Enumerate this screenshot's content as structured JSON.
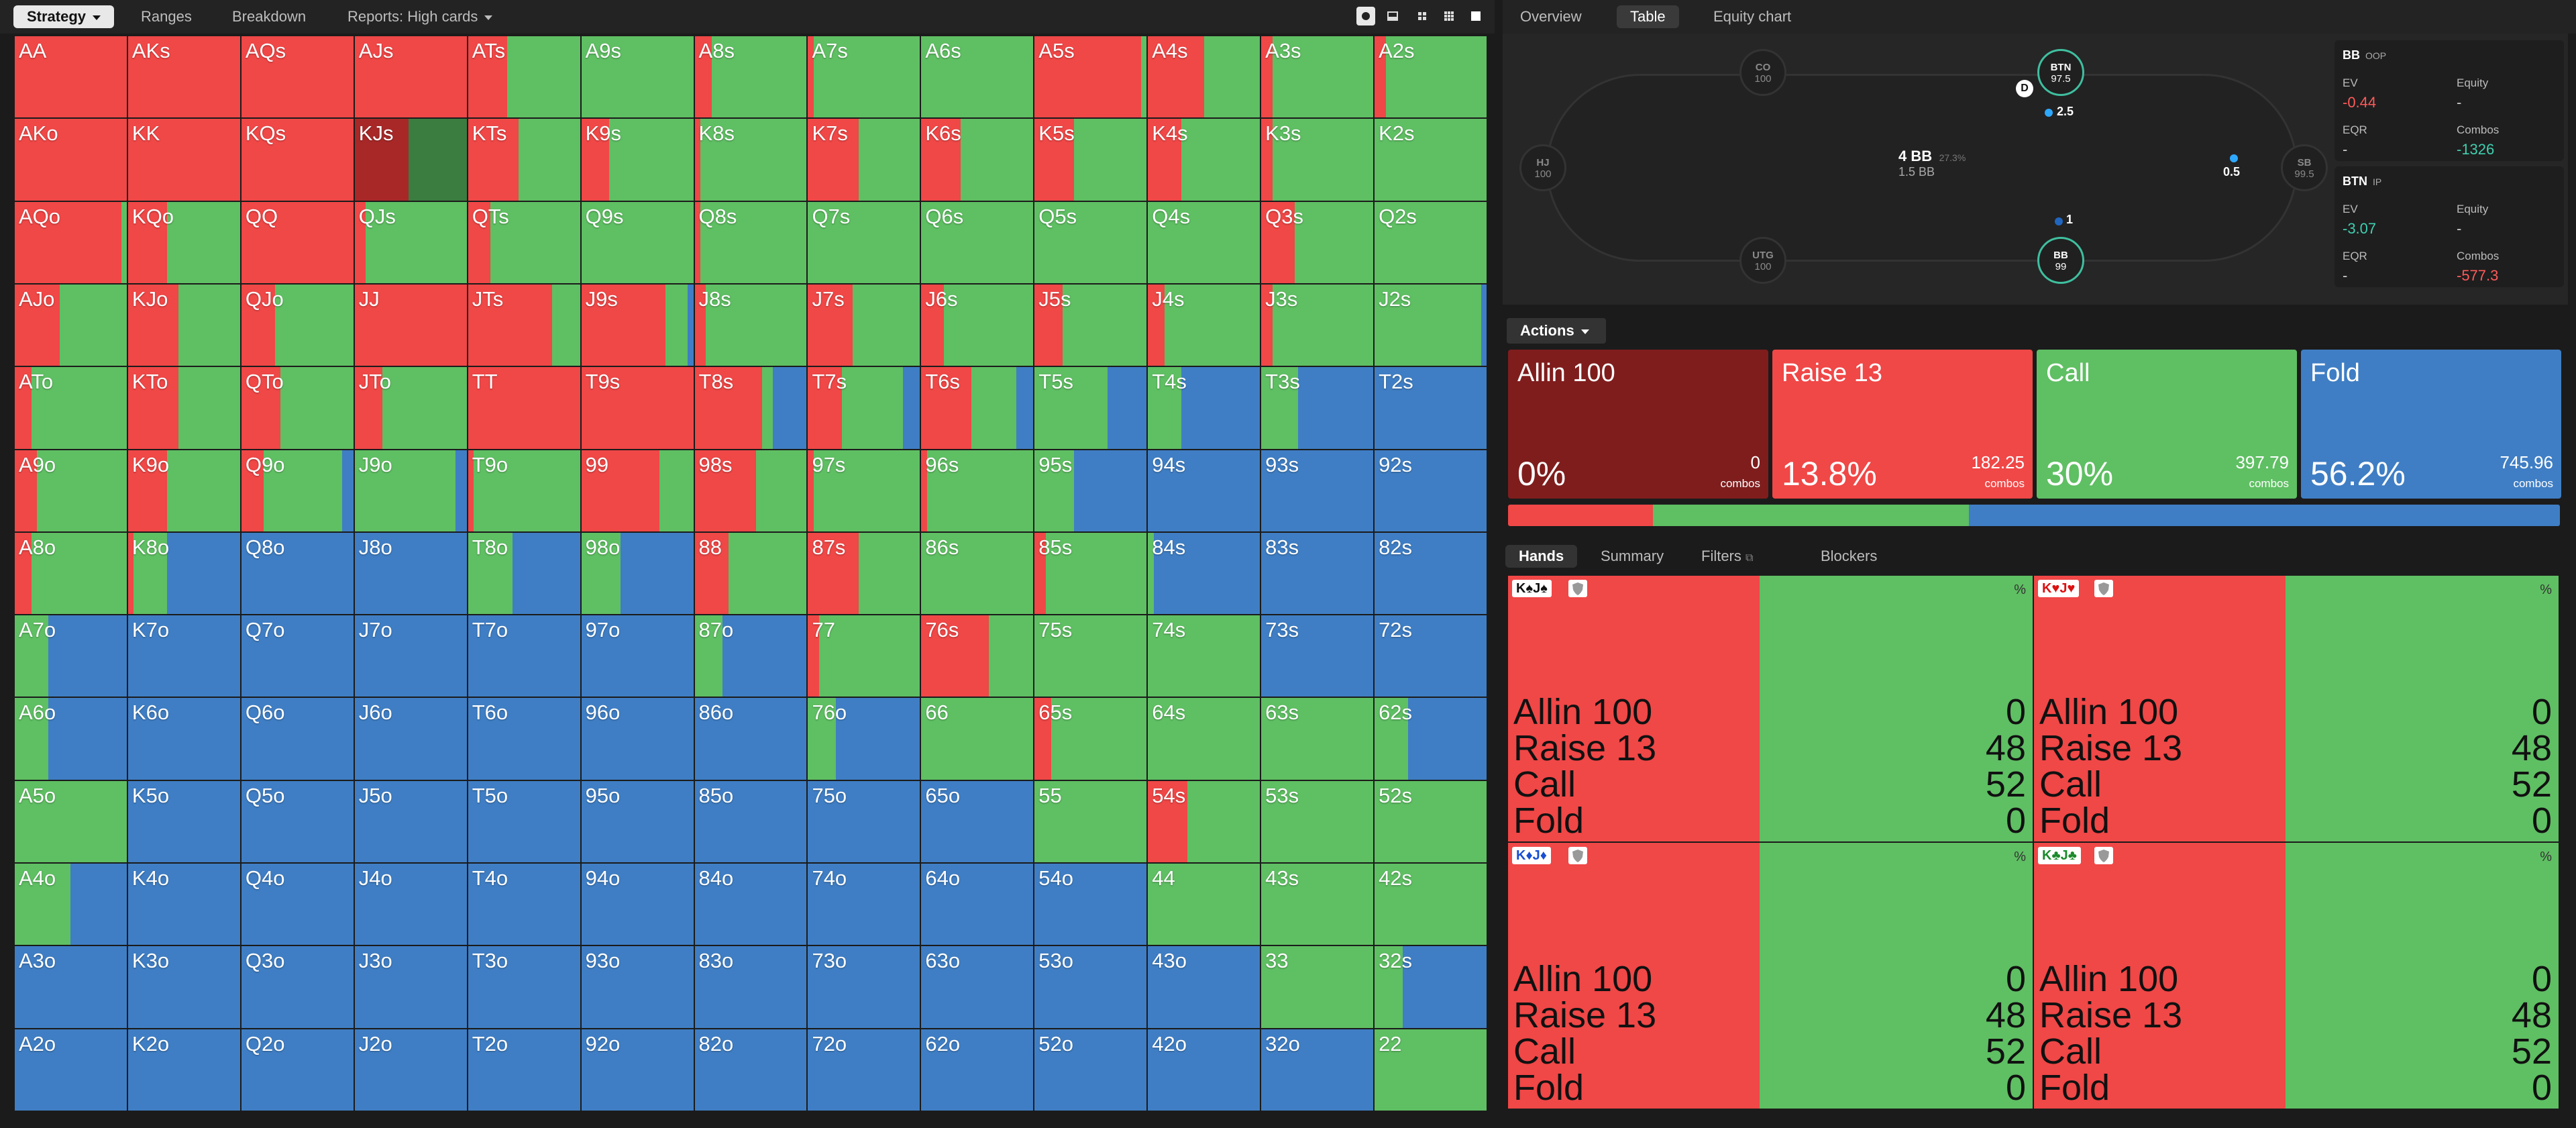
{
  "toolbar": {
    "tabs": [
      "Strategy",
      "Ranges",
      "Breakdown",
      "Reports: High cards"
    ],
    "active_tab": "Strategy",
    "view_icons": [
      "cards-icon",
      "split-view-icon",
      "compact-grid-icon",
      "grid-icon",
      "square-icon"
    ]
  },
  "right_tabs": {
    "items": [
      "Overview",
      "Table",
      "Equity chart"
    ],
    "active": "Table"
  },
  "colors": {
    "allin": "#7f1d1d",
    "raise": "#f04747",
    "call": "#5fbf63",
    "fold": "#3f7ec4",
    "highlight_raise": "#a82828",
    "highlight_call": "#3b7d40"
  },
  "grid": {
    "ranks": [
      "A",
      "K",
      "Q",
      "J",
      "T",
      "9",
      "8",
      "7",
      "6",
      "5",
      "4",
      "3",
      "2"
    ],
    "labels": [
      [
        "AA",
        "AKs",
        "AQs",
        "AJs",
        "ATs",
        "A9s",
        "A8s",
        "A7s",
        "A6s",
        "A5s",
        "A4s",
        "A3s",
        "A2s"
      ],
      [
        "AKo",
        "KK",
        "KQs",
        "KJs",
        "KTs",
        "K9s",
        "K8s",
        "K7s",
        "K6s",
        "K5s",
        "K4s",
        "K3s",
        "K2s"
      ],
      [
        "AQo",
        "KQo",
        "QQ",
        "QJs",
        "QTs",
        "Q9s",
        "Q8s",
        "Q7s",
        "Q6s",
        "Q5s",
        "Q4s",
        "Q3s",
        "Q2s"
      ],
      [
        "AJo",
        "KJo",
        "QJo",
        "JJ",
        "JTs",
        "J9s",
        "J8s",
        "J7s",
        "J6s",
        "J5s",
        "J4s",
        "J3s",
        "J2s"
      ],
      [
        "ATo",
        "KTo",
        "QTo",
        "JTo",
        "TT",
        "T9s",
        "T8s",
        "T7s",
        "T6s",
        "T5s",
        "T4s",
        "T3s",
        "T2s"
      ],
      [
        "A9o",
        "K9o",
        "Q9o",
        "J9o",
        "T9o",
        "99",
        "98s",
        "97s",
        "96s",
        "95s",
        "94s",
        "93s",
        "92s"
      ],
      [
        "A8o",
        "K8o",
        "Q8o",
        "J8o",
        "T8o",
        "98o",
        "88",
        "87s",
        "86s",
        "85s",
        "84s",
        "83s",
        "82s"
      ],
      [
        "A7o",
        "K7o",
        "Q7o",
        "J7o",
        "T7o",
        "97o",
        "87o",
        "77",
        "76s",
        "75s",
        "74s",
        "73s",
        "72s"
      ],
      [
        "A6o",
        "K6o",
        "Q6o",
        "J6o",
        "T6o",
        "96o",
        "86o",
        "76o",
        "66",
        "65s",
        "64s",
        "63s",
        "62s"
      ],
      [
        "A5o",
        "K5o",
        "Q5o",
        "J5o",
        "T5o",
        "95o",
        "85o",
        "75o",
        "65o",
        "55",
        "54s",
        "53s",
        "52s"
      ],
      [
        "A4o",
        "K4o",
        "Q4o",
        "J4o",
        "T4o",
        "94o",
        "84o",
        "74o",
        "64o",
        "54o",
        "44",
        "43s",
        "42s"
      ],
      [
        "A3o",
        "K3o",
        "Q3o",
        "J3o",
        "T3o",
        "93o",
        "83o",
        "73o",
        "63o",
        "53o",
        "43o",
        "33",
        "32s"
      ],
      [
        "A2o",
        "K2o",
        "Q2o",
        "J2o",
        "T2o",
        "92o",
        "82o",
        "72o",
        "62o",
        "52o",
        "42o",
        "32o",
        "22"
      ]
    ],
    "frequencies": [
      [
        [
          0,
          1,
          0,
          0
        ],
        [
          0,
          1,
          0,
          0
        ],
        [
          0,
          1,
          0,
          0
        ],
        [
          0,
          1,
          0,
          0
        ],
        [
          0,
          0.35,
          0.65,
          0
        ],
        [
          0,
          0,
          1,
          0
        ],
        [
          0,
          0.15,
          0.85,
          0
        ],
        [
          0,
          0.05,
          0.95,
          0
        ],
        [
          0,
          0,
          1,
          0
        ],
        [
          0,
          0.95,
          0.05,
          0
        ],
        [
          0,
          0.5,
          0.5,
          0
        ],
        [
          0,
          0.1,
          0.9,
          0
        ],
        [
          0,
          0.1,
          0.9,
          0
        ]
      ],
      [
        [
          0,
          1,
          0,
          0
        ],
        [
          0,
          1,
          0,
          0
        ],
        [
          0,
          1,
          0,
          0
        ],
        [
          0,
          0.48,
          0.52,
          0
        ],
        [
          0,
          0.45,
          0.55,
          0
        ],
        [
          0,
          0.25,
          0.75,
          0
        ],
        [
          0,
          0.05,
          0.95,
          0
        ],
        [
          0,
          0.45,
          0.55,
          0
        ],
        [
          0,
          0.35,
          0.65,
          0
        ],
        [
          0,
          0.35,
          0.65,
          0
        ],
        [
          0,
          0.3,
          0.7,
          0
        ],
        [
          0,
          0.1,
          0.9,
          0
        ],
        [
          0,
          0,
          1,
          0
        ]
      ],
      [
        [
          0,
          0.95,
          0.05,
          0
        ],
        [
          0,
          0.35,
          0.65,
          0
        ],
        [
          0,
          1,
          0,
          0
        ],
        [
          0,
          0.1,
          0.9,
          0
        ],
        [
          0,
          0.2,
          0.8,
          0
        ],
        [
          0,
          0,
          1,
          0
        ],
        [
          0,
          0.05,
          0.95,
          0
        ],
        [
          0,
          0,
          1,
          0
        ],
        [
          0,
          0,
          1,
          0
        ],
        [
          0,
          0,
          1,
          0
        ],
        [
          0,
          0,
          1,
          0
        ],
        [
          0,
          0.3,
          0.7,
          0
        ],
        [
          0,
          0,
          1,
          0
        ]
      ],
      [
        [
          0,
          0.4,
          0.6,
          0
        ],
        [
          0,
          0.45,
          0.55,
          0
        ],
        [
          0,
          0.3,
          0.7,
          0
        ],
        [
          0,
          1,
          0,
          0
        ],
        [
          0,
          0.75,
          0.25,
          0
        ],
        [
          0,
          0.75,
          0.2,
          0.05
        ],
        [
          0,
          0.1,
          0.9,
          0
        ],
        [
          0,
          0.4,
          0.6,
          0
        ],
        [
          0,
          0.2,
          0.8,
          0
        ],
        [
          0,
          0.25,
          0.75,
          0
        ],
        [
          0,
          0.15,
          0.85,
          0
        ],
        [
          0,
          0.1,
          0.9,
          0
        ],
        [
          0,
          0,
          0.95,
          0.05
        ]
      ],
      [
        [
          0,
          0.15,
          0.85,
          0
        ],
        [
          0,
          0.45,
          0.55,
          0
        ],
        [
          0,
          0.35,
          0.65,
          0
        ],
        [
          0,
          0.25,
          0.75,
          0
        ],
        [
          0,
          1,
          0,
          0
        ],
        [
          0,
          1,
          0,
          0
        ],
        [
          0,
          0.6,
          0.1,
          0.3
        ],
        [
          0,
          0.3,
          0.55,
          0.15
        ],
        [
          0,
          0.45,
          0.4,
          0.15
        ],
        [
          0,
          0,
          0.65,
          0.35
        ],
        [
          0,
          0,
          0.3,
          0.7
        ],
        [
          0,
          0,
          0.33,
          0.67
        ],
        [
          0,
          0,
          0,
          1
        ]
      ],
      [
        [
          0,
          0.2,
          0.8,
          0
        ],
        [
          0,
          0.35,
          0.65,
          0
        ],
        [
          0,
          0.2,
          0.7,
          0.1
        ],
        [
          0,
          0,
          0.9,
          0.1
        ],
        [
          0,
          0.05,
          0.95,
          0
        ],
        [
          0,
          0.7,
          0.3,
          0
        ],
        [
          0,
          0.55,
          0.45,
          0
        ],
        [
          0,
          0.05,
          0.95,
          0
        ],
        [
          0,
          0.05,
          0.95,
          0
        ],
        [
          0,
          0,
          0.35,
          0.65
        ],
        [
          0,
          0,
          0,
          1
        ],
        [
          0,
          0,
          0,
          1
        ],
        [
          0,
          0,
          0,
          1
        ]
      ],
      [
        [
          0,
          0.15,
          0.85,
          0
        ],
        [
          0,
          0.05,
          0.3,
          0.65
        ],
        [
          0,
          0,
          0,
          1
        ],
        [
          0,
          0,
          0,
          1
        ],
        [
          0,
          0,
          0.4,
          0.6
        ],
        [
          0,
          0,
          0.35,
          0.65
        ],
        [
          0,
          0.3,
          0.7,
          0
        ],
        [
          0,
          0.45,
          0.55,
          0
        ],
        [
          0,
          0,
          1,
          0
        ],
        [
          0,
          0.1,
          0.9,
          0
        ],
        [
          0,
          0,
          0.05,
          0.95
        ],
        [
          0,
          0,
          0,
          1
        ],
        [
          0,
          0,
          0,
          1
        ]
      ],
      [
        [
          0,
          0,
          0.3,
          0.7
        ],
        [
          0,
          0,
          0,
          1
        ],
        [
          0,
          0,
          0,
          1
        ],
        [
          0,
          0,
          0,
          1
        ],
        [
          0,
          0,
          0,
          1
        ],
        [
          0,
          0,
          0,
          1
        ],
        [
          0,
          0,
          0.25,
          0.75
        ],
        [
          0,
          0.1,
          0.9,
          0
        ],
        [
          0,
          0.6,
          0.4,
          0
        ],
        [
          0,
          0,
          1,
          0
        ],
        [
          0,
          0,
          1,
          0
        ],
        [
          0,
          0,
          0,
          1
        ],
        [
          0,
          0,
          0,
          1
        ]
      ],
      [
        [
          0,
          0,
          0.3,
          0.7
        ],
        [
          0,
          0,
          0,
          1
        ],
        [
          0,
          0,
          0,
          1
        ],
        [
          0,
          0,
          0,
          1
        ],
        [
          0,
          0,
          0,
          1
        ],
        [
          0,
          0,
          0,
          1
        ],
        [
          0,
          0,
          0,
          1
        ],
        [
          0,
          0,
          0.25,
          0.75
        ],
        [
          0,
          0,
          1,
          0
        ],
        [
          0,
          0.15,
          0.85,
          0
        ],
        [
          0,
          0,
          1,
          0
        ],
        [
          0,
          0,
          1,
          0
        ],
        [
          0,
          0,
          0.3,
          0.7
        ]
      ],
      [
        [
          0,
          0,
          1,
          0
        ],
        [
          0,
          0,
          0,
          1
        ],
        [
          0,
          0,
          0,
          1
        ],
        [
          0,
          0,
          0,
          1
        ],
        [
          0,
          0,
          0,
          1
        ],
        [
          0,
          0,
          0,
          1
        ],
        [
          0,
          0,
          0,
          1
        ],
        [
          0,
          0,
          0,
          1
        ],
        [
          0,
          0,
          0,
          1
        ],
        [
          0,
          0,
          1,
          0
        ],
        [
          0,
          0.35,
          0.65,
          0
        ],
        [
          0,
          0,
          1,
          0
        ],
        [
          0,
          0,
          1,
          0
        ]
      ],
      [
        [
          0,
          0,
          0.5,
          0.5
        ],
        [
          0,
          0,
          0,
          1
        ],
        [
          0,
          0,
          0,
          1
        ],
        [
          0,
          0,
          0,
          1
        ],
        [
          0,
          0,
          0,
          1
        ],
        [
          0,
          0,
          0,
          1
        ],
        [
          0,
          0,
          0,
          1
        ],
        [
          0,
          0,
          0,
          1
        ],
        [
          0,
          0,
          0,
          1
        ],
        [
          0,
          0,
          0,
          1
        ],
        [
          0,
          0,
          1,
          0
        ],
        [
          0,
          0,
          1,
          0
        ],
        [
          0,
          0,
          1,
          0
        ]
      ],
      [
        [
          0,
          0,
          0,
          1
        ],
        [
          0,
          0,
          0,
          1
        ],
        [
          0,
          0,
          0,
          1
        ],
        [
          0,
          0,
          0,
          1
        ],
        [
          0,
          0,
          0,
          1
        ],
        [
          0,
          0,
          0,
          1
        ],
        [
          0,
          0,
          0,
          1
        ],
        [
          0,
          0,
          0,
          1
        ],
        [
          0,
          0,
          0,
          1
        ],
        [
          0,
          0,
          0,
          1
        ],
        [
          0,
          0,
          0,
          1
        ],
        [
          0,
          0,
          1,
          0
        ],
        [
          0,
          0,
          0.25,
          0.75
        ]
      ],
      [
        [
          0,
          0,
          0,
          1
        ],
        [
          0,
          0,
          0,
          1
        ],
        [
          0,
          0,
          0,
          1
        ],
        [
          0,
          0,
          0,
          1
        ],
        [
          0,
          0,
          0,
          1
        ],
        [
          0,
          0,
          0,
          1
        ],
        [
          0,
          0,
          0,
          1
        ],
        [
          0,
          0,
          0,
          1
        ],
        [
          0,
          0,
          0,
          1
        ],
        [
          0,
          0,
          0,
          1
        ],
        [
          0,
          0,
          0,
          1
        ],
        [
          0,
          0,
          0,
          1
        ],
        [
          0,
          0,
          1,
          0
        ]
      ]
    ],
    "selected": "KJs"
  },
  "table": {
    "seats": [
      {
        "pos": "CO",
        "stack": "100"
      },
      {
        "pos": "BTN",
        "stack": "97.5"
      },
      {
        "pos": "HJ",
        "stack": "100"
      },
      {
        "pos": "SB",
        "stack": "99.5"
      },
      {
        "pos": "UTG",
        "stack": "100"
      },
      {
        "pos": "BB",
        "stack": "99"
      }
    ],
    "dealer": "D",
    "pot": "4 BB",
    "pot_pct": "27.3%",
    "pot_sub": "1.5 BB",
    "bets": {
      "btn": "2.5",
      "sb": "0.5",
      "bb": "1"
    }
  },
  "info": {
    "bb": {
      "title": "BB",
      "tag": "OOP",
      "ev_label": "EV",
      "ev": "-0.44",
      "equity_label": "Equity",
      "equity": "-",
      "eqr_label": "EQR",
      "eqr": "-",
      "combos_label": "Combos",
      "combos": "-1326"
    },
    "btn": {
      "title": "BTN",
      "tag": "IP",
      "ev_label": "EV",
      "ev": "-3.07",
      "equity_label": "Equity",
      "equity": "-",
      "eqr_label": "EQR",
      "eqr": "-",
      "combos_label": "Combos",
      "combos": "-577.3"
    }
  },
  "actions": {
    "label": "Actions",
    "items": [
      {
        "name": "Allin 100",
        "pct": "0%",
        "combos": "0",
        "combos_label": "combos"
      },
      {
        "name": "Raise 13",
        "pct": "13.8%",
        "combos": "182.25",
        "combos_label": "combos"
      },
      {
        "name": "Call",
        "pct": "30%",
        "combos": "397.79",
        "combos_label": "combos"
      },
      {
        "name": "Fold",
        "pct": "56.2%",
        "combos": "745.96",
        "combos_label": "combos"
      }
    ],
    "bar": [
      0,
      0.138,
      0.3,
      0.562
    ]
  },
  "hands_tabs": {
    "items": [
      "Hands",
      "Summary",
      "Filters",
      "Blockers"
    ],
    "active": "Hands"
  },
  "hands": [
    {
      "combo": "K♠J♠",
      "suit": "spade",
      "rows": [
        {
          "a": "Allin 100",
          "v": "0"
        },
        {
          "a": "Raise 13",
          "v": "48"
        },
        {
          "a": "Call",
          "v": "52"
        },
        {
          "a": "Fold",
          "v": "0"
        }
      ],
      "pct_mark": "%"
    },
    {
      "combo": "K♥J♥",
      "suit": "heart",
      "rows": [
        {
          "a": "Allin 100",
          "v": "0"
        },
        {
          "a": "Raise 13",
          "v": "48"
        },
        {
          "a": "Call",
          "v": "52"
        },
        {
          "a": "Fold",
          "v": "0"
        }
      ],
      "pct_mark": "%"
    },
    {
      "combo": "K♦J♦",
      "suit": "diamond",
      "rows": [
        {
          "a": "Allin 100",
          "v": "0"
        },
        {
          "a": "Raise 13",
          "v": "48"
        },
        {
          "a": "Call",
          "v": "52"
        },
        {
          "a": "Fold",
          "v": "0"
        }
      ],
      "pct_mark": "%"
    },
    {
      "combo": "K♣J♣",
      "suit": "club",
      "rows": [
        {
          "a": "Allin 100",
          "v": "0"
        },
        {
          "a": "Raise 13",
          "v": "48"
        },
        {
          "a": "Call",
          "v": "52"
        },
        {
          "a": "Fold",
          "v": "0"
        }
      ],
      "pct_mark": "%"
    }
  ],
  "hand_split": [
    0,
    0.48,
    0.52,
    0
  ]
}
